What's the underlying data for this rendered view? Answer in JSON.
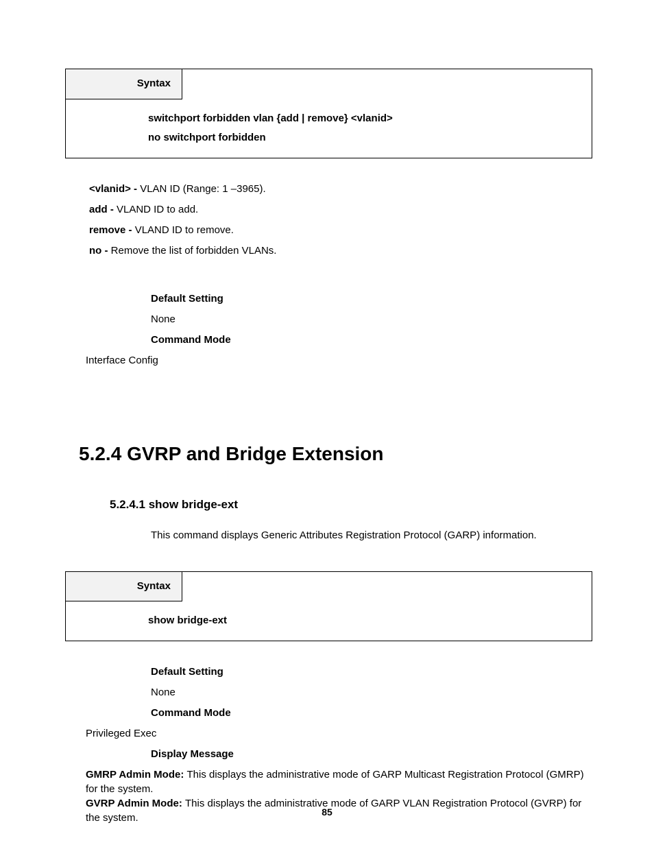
{
  "syntaxBox1": {
    "header": "Syntax",
    "line1": "switchport forbidden vlan {add | remove} <vlanid>",
    "line2": "no switchport forbidden"
  },
  "params": {
    "vlanid_label": "<vlanid> - ",
    "vlanid_text": "VLAN ID (Range: 1 –3965).",
    "add_label": "add - ",
    "add_text": "VLAND ID to add.",
    "remove_label": "remove - ",
    "remove_text": "VLAND ID to remove.",
    "no_label": "no - ",
    "no_text": "Remove the list of forbidden VLANs."
  },
  "settings1": {
    "default_label": "Default Setting",
    "default_value": "None",
    "mode_label": "Command Mode",
    "mode_value": "Interface Config"
  },
  "section": {
    "number": "5.2.4 ",
    "title": "GVRP and Bridge Extension"
  },
  "subsection": {
    "number": "5.2.4.1 ",
    "title": "show bridge-ext",
    "desc": "This command displays Generic Attributes Registration Protocol (GARP) information."
  },
  "syntaxBox2": {
    "header": "Syntax",
    "body": "show bridge-ext"
  },
  "settings2": {
    "default_label": "Default Setting",
    "default_value": "None",
    "mode_label": "Command Mode",
    "mode_value": "Privileged Exec",
    "display_label": "Display Message"
  },
  "messages": {
    "gmrp_label": "GMRP Admin Mode: ",
    "gmrp_text": "This displays the administrative mode of GARP Multicast Registration Protocol (GMRP) for the system.",
    "gvrp_label": "GVRP Admin Mode: ",
    "gvrp_text": "This displays the administrative mode of GARP VLAN Registration Protocol (GVRP) for the system."
  },
  "pageNumber": "85"
}
